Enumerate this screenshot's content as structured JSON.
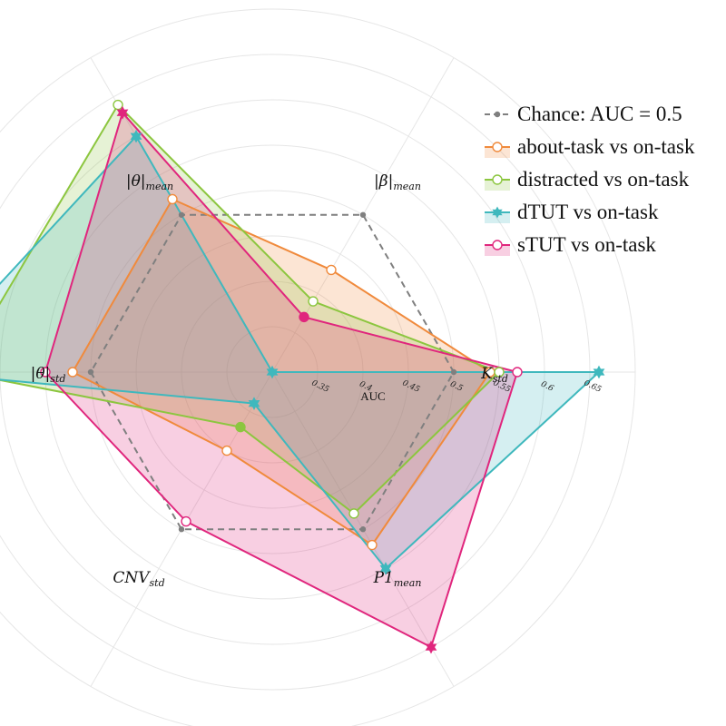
{
  "chart_data": {
    "type": "radar",
    "title": "",
    "radial_axis_label": "AUC",
    "radial_ticks": [
      "0.35",
      "0.4",
      "0.45",
      "0.5",
      "0.55",
      "0.6",
      "0.65"
    ],
    "axes": [
      {
        "sub": "std",
        "main": "K"
      },
      {
        "sub": "mean",
        "main": "|β|"
      },
      {
        "sub": "mean",
        "main": "|θ|"
      },
      {
        "sub": "std",
        "main": "|θ|"
      },
      {
        "sub": "std",
        "main": "CNV"
      },
      {
        "sub": "mean",
        "main": "P1"
      }
    ],
    "series": [
      {
        "name": "Chance: AUC = 0.5",
        "color": "#7f7f7f",
        "marker": "dot",
        "dashed": true,
        "fill": false,
        "values": [
          0.5,
          0.5,
          0.5,
          0.5,
          0.5,
          0.5
        ]
      },
      {
        "name": "about-task vs on-task",
        "color": "#f08a3c",
        "marker": "open",
        "dashed": false,
        "fill": true,
        "values": [
          0.54,
          0.43,
          0.52,
          0.52,
          0.4,
          0.52
        ]
      },
      {
        "name": "distracted vs on-task",
        "color": "#8cc63f",
        "marker": "open",
        "dashed": false,
        "fill": true,
        "values": [
          0.55,
          0.39,
          0.64,
          0.645,
          0.37,
          0.48
        ]
      },
      {
        "name": "dTUT vs on-task",
        "color": "#3fb8bd",
        "marker": "star",
        "dashed": false,
        "fill": true,
        "values": [
          0.66,
          0.3,
          0.6,
          0.69,
          0.34,
          0.55
        ]
      },
      {
        "name": "sTUT vs on-task",
        "color": "#e0267d",
        "marker": "open",
        "dashed": false,
        "fill": true,
        "values": [
          0.57,
          0.37,
          0.63,
          0.55,
          0.49,
          0.65
        ]
      }
    ],
    "rlim": [
      0.3,
      0.7
    ],
    "grid": true,
    "legend_position": "top-right"
  }
}
